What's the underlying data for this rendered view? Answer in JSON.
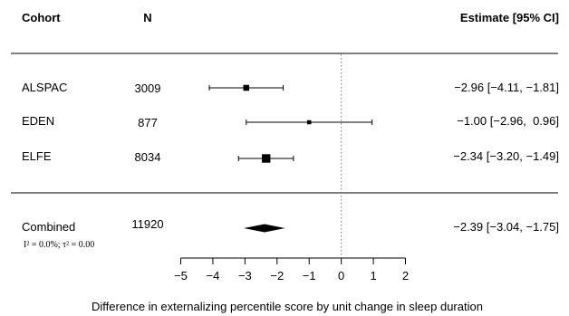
{
  "chart_data": {
    "type": "forest",
    "header": {
      "cohort": "Cohort",
      "n": "N",
      "estimate": "Estimate [95% CI]"
    },
    "rows": [
      {
        "cohort": "ALSPAC",
        "n": "3009",
        "estimate": -2.96,
        "lower": -4.11,
        "upper": -1.81,
        "label": "−2.96 [−4.11, −1.81]",
        "weight": 0.25
      },
      {
        "cohort": "EDEN",
        "n": "877",
        "estimate": -1.0,
        "lower": -2.96,
        "upper": 0.96,
        "label": "−1.00 [−2.96,  0.96]",
        "weight": 0.08
      },
      {
        "cohort": "ELFE",
        "n": "8034",
        "estimate": -2.34,
        "lower": -3.2,
        "upper": -1.49,
        "label": "−2.34 [−3.20, −1.49]",
        "weight": 0.67
      }
    ],
    "combined": {
      "cohort": "Combined",
      "n": "11920",
      "estimate": -2.39,
      "lower": -3.04,
      "upper": -1.75,
      "label": "−2.39 [−3.04, −1.75]",
      "heterogeneity": "I² = 0.0%; τ² = 0.00"
    },
    "xlim": [
      -5,
      2
    ],
    "xticks": [
      -5,
      -4,
      -3,
      -2,
      -1,
      0,
      1,
      2
    ],
    "xtick_labels": [
      "−5",
      "−4",
      "−3",
      "−2",
      "−1",
      "0",
      "1",
      "2"
    ],
    "reference_line": 0,
    "xlabel": "Difference in externalizing percentile score by unit change in sleep duration"
  },
  "colors": {
    "ink": "#000000",
    "reference": "#555555",
    "background": "#ffffff"
  }
}
